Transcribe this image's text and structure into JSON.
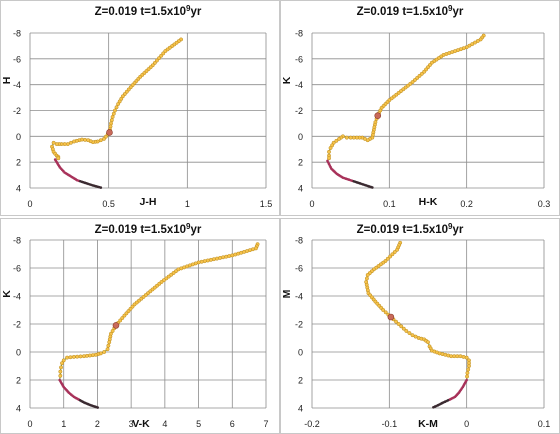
{
  "colors": {
    "grid": "#8c8c8c",
    "frame": "#c8c8c8",
    "isochrone_line": "#6e9a45",
    "isochrone_dot_fill": "#f6c24a",
    "isochrone_dot_stroke": "#b98a1c",
    "lower_ms": "#a8325a",
    "lower_ms_dark": "#3a2a30",
    "highlight": "#c96a5a"
  },
  "chart_data": [
    {
      "type": "scatter",
      "title": "Z=0.019  t=1.5x10",
      "title_exp": "9",
      "title_suffix": "yr",
      "xlabel": "J-H",
      "ylabel": "H",
      "xlim": [
        0,
        1.5
      ],
      "ylim": [
        -8,
        4
      ],
      "y_inverted": true,
      "xticks": [
        "0",
        "0.5",
        "1",
        "1.5"
      ],
      "yticks": [
        "-8",
        "-6",
        "-4",
        "-2",
        "0",
        "2",
        "4"
      ],
      "grid": true,
      "series": [
        {
          "kind": "line+points",
          "x": [
            0.96,
            0.86,
            0.78,
            0.7,
            0.64,
            0.59,
            0.56,
            0.54,
            0.525,
            0.515,
            0.505,
            0.47,
            0.43,
            0.4,
            0.37,
            0.33,
            0.28,
            0.24,
            0.2,
            0.17,
            0.15,
            0.14,
            0.15,
            0.17,
            0.18,
            0.18,
            0.16
          ],
          "y": [
            -7.5,
            -6.6,
            -5.5,
            -4.6,
            -3.8,
            -3.1,
            -2.5,
            -2.0,
            -1.5,
            -1.0,
            -0.3,
            0.2,
            0.4,
            0.45,
            0.3,
            0.25,
            0.4,
            0.6,
            0.6,
            0.6,
            0.5,
            0.8,
            1.2,
            1.5,
            1.6,
            1.7,
            1.8
          ]
        },
        {
          "kind": "lower",
          "x": [
            0.16,
            0.19,
            0.22,
            0.26,
            0.3,
            0.35,
            0.4,
            0.46
          ],
          "y": [
            1.8,
            2.4,
            2.8,
            3.1,
            3.4,
            3.6,
            3.8,
            4.0
          ]
        }
      ]
    },
    {
      "type": "scatter",
      "title": "Z=0.019  t=1.5x10",
      "title_exp": "9",
      "title_suffix": "yr",
      "xlabel": "H-K",
      "ylabel": "K",
      "xlim": [
        0,
        0.3
      ],
      "ylim": [
        -8,
        4
      ],
      "y_inverted": true,
      "xticks": [
        "0",
        "0.1",
        "0.2",
        "0.3"
      ],
      "yticks": [
        "-8",
        "-6",
        "-4",
        "-2",
        "0",
        "2",
        "4"
      ],
      "grid": true,
      "series": [
        {
          "kind": "line+points",
          "x": [
            0.222,
            0.218,
            0.2,
            0.17,
            0.155,
            0.145,
            0.13,
            0.115,
            0.1,
            0.09,
            0.085,
            0.082,
            0.08,
            0.078,
            0.072,
            0.065,
            0.058,
            0.05,
            0.045,
            0.04,
            0.035,
            0.028,
            0.024,
            0.022,
            0.022,
            0.022,
            0.02
          ],
          "y": [
            -7.8,
            -7.5,
            -6.9,
            -6.3,
            -5.7,
            -5.0,
            -4.2,
            -3.5,
            -2.8,
            -2.2,
            -1.6,
            -1.1,
            -0.5,
            0.1,
            0.3,
            0.1,
            0.1,
            0.1,
            0.1,
            0.0,
            0.2,
            0.5,
            0.9,
            1.2,
            1.5,
            1.7,
            1.9
          ]
        },
        {
          "kind": "lower",
          "x": [
            0.02,
            0.025,
            0.032,
            0.04,
            0.05,
            0.06,
            0.07,
            0.08
          ],
          "y": [
            1.9,
            2.5,
            2.9,
            3.2,
            3.4,
            3.6,
            3.8,
            4.0
          ]
        }
      ]
    },
    {
      "type": "scatter",
      "title": "Z=0.019  t=1.5x10",
      "title_exp": "9",
      "title_suffix": "yr",
      "xlabel": "V-K",
      "ylabel": "K",
      "xlim": [
        0,
        7
      ],
      "ylim": [
        -8,
        4
      ],
      "y_inverted": true,
      "xticks": [
        "0",
        "1",
        "2",
        "3",
        "4",
        "5",
        "6",
        "7"
      ],
      "yticks": [
        "-8",
        "-6",
        "-4",
        "-2",
        "0",
        "2",
        "4"
      ],
      "grid": true,
      "series": [
        {
          "kind": "line+points",
          "x": [
            6.75,
            6.7,
            6.0,
            5.0,
            4.4,
            3.9,
            3.5,
            3.1,
            2.8,
            2.55,
            2.4,
            2.35,
            2.3,
            2.2,
            2.1,
            1.95,
            1.6,
            1.3,
            1.1,
            1.0,
            0.95,
            0.92,
            0.9,
            0.9,
            0.88
          ],
          "y": [
            -7.7,
            -7.4,
            -6.9,
            -6.4,
            -5.9,
            -5.0,
            -4.2,
            -3.4,
            -2.6,
            -1.9,
            -1.3,
            -0.7,
            -0.2,
            0.0,
            0.1,
            0.2,
            0.3,
            0.35,
            0.4,
            0.6,
            0.8,
            1.1,
            1.4,
            1.7,
            2.0
          ]
        },
        {
          "kind": "lower",
          "x": [
            0.88,
            1.0,
            1.15,
            1.3,
            1.45,
            1.6,
            1.8,
            2.05
          ],
          "y": [
            2.0,
            2.5,
            2.9,
            3.2,
            3.4,
            3.6,
            3.8,
            4.0
          ]
        }
      ]
    },
    {
      "type": "scatter",
      "title": "Z=0.019  t=1.5x10",
      "title_exp": "9",
      "title_suffix": "yr",
      "xlabel": "K-M",
      "ylabel": "M",
      "xlim": [
        -0.2,
        0.1
      ],
      "ylim": [
        -8,
        4
      ],
      "y_inverted": true,
      "xticks": [
        "-0.2",
        "-0.1",
        "0",
        "0.1"
      ],
      "yticks": [
        "-8",
        "-6",
        "-4",
        "-2",
        "0",
        "2",
        "4"
      ],
      "grid": true,
      "series": [
        {
          "kind": "line+points",
          "x": [
            -0.086,
            -0.09,
            -0.105,
            -0.12,
            -0.128,
            -0.13,
            -0.127,
            -0.118,
            -0.108,
            -0.098,
            -0.088,
            -0.078,
            -0.07,
            -0.062,
            -0.055,
            -0.05,
            -0.048,
            -0.045,
            -0.035,
            -0.02,
            -0.008,
            0.0,
            0.003,
            0.003,
            0.001,
            0.0
          ],
          "y": [
            -7.8,
            -7.3,
            -6.5,
            -5.9,
            -5.5,
            -5.0,
            -4.2,
            -3.6,
            -3.0,
            -2.5,
            -2.0,
            -1.5,
            -1.2,
            -1.0,
            -0.9,
            -0.7,
            -0.4,
            -0.1,
            0.1,
            0.3,
            0.3,
            0.4,
            0.6,
            1.0,
            1.5,
            2.0
          ]
        },
        {
          "kind": "lower",
          "x": [
            0.0,
            -0.005,
            -0.01,
            -0.015,
            -0.022,
            -0.03,
            -0.037,
            -0.045
          ],
          "y": [
            2.0,
            2.5,
            2.9,
            3.2,
            3.4,
            3.6,
            3.8,
            4.0
          ]
        }
      ]
    }
  ]
}
